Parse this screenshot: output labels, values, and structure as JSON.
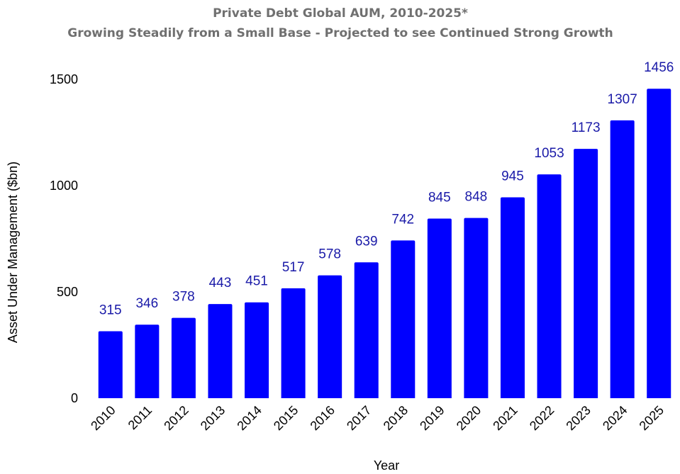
{
  "chart_data": {
    "type": "bar",
    "title": "Private Debt Global AUM, 2010-2025*",
    "subtitle": "Growing Steadily from a Small Base - Projected to see Continued Strong Growth",
    "xlabel": "Year",
    "ylabel": "Asset Under Management ($bn)",
    "categories": [
      "2010",
      "2011",
      "2012",
      "2013",
      "2014",
      "2015",
      "2016",
      "2017",
      "2018",
      "2019",
      "2020",
      "2021",
      "2022",
      "2023",
      "2024",
      "2025"
    ],
    "values": [
      315,
      346,
      378,
      443,
      451,
      517,
      578,
      639,
      742,
      845,
      848,
      945,
      1053,
      1173,
      1307,
      1456
    ],
    "yticks": [
      0,
      500,
      1000,
      1500
    ],
    "ylim": [
      0,
      1500
    ],
    "grid": false,
    "legend": "none",
    "bar_color": "#0000ff",
    "label_color": "#1a1aa8",
    "title_color": "#707070"
  }
}
